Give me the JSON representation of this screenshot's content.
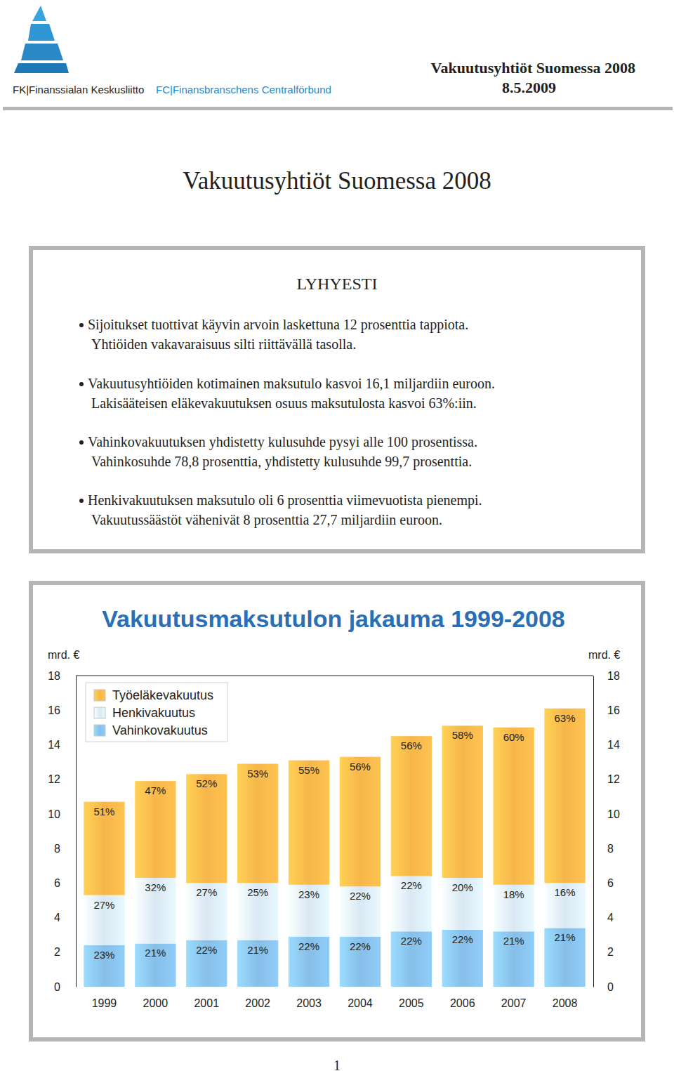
{
  "header": {
    "org": [
      "FK|Finanssialan Keskusliitto",
      "FC|Finansbranschens Centralförbund"
    ],
    "title": "Vakuutusyhtiöt Suomessa 2008",
    "date": "8.5.2009"
  },
  "title": "Vakuutusyhtiöt Suomessa 2008",
  "summary": {
    "heading": "LYHYESTI",
    "items": [
      [
        "Sijoitukset tuottivat käyvin arvoin laskettuna 12 prosenttia tappiota.",
        "Yhtiöiden vakavaraisuus silti riittävällä tasolla."
      ],
      [
        "Vakuutusyhtiöiden kotimainen maksutulo kasvoi 16,1 miljardiin euroon.",
        "Lakisääteisen eläkevakuutuksen osuus maksutulosta kasvoi 63%:iin."
      ],
      [
        "Vahinkovakuutuksen yhdistetty kulusuhde pysyi alle 100 prosentissa.",
        "Vahinkosuhde 78,8 prosenttia, yhdistetty kulusuhde 99,7 prosenttia."
      ],
      [
        "Henkivakuutuksen maksutulo oli 6 prosenttia viimevuotista pienempi.",
        "Vakuutussäästöt vähenivät 8 prosenttia 27,7 miljardiin euroon."
      ]
    ]
  },
  "chart_data": {
    "type": "bar",
    "stacked": true,
    "title": "Vakuutusmaksutulon jakauma 1999-2008",
    "ylabel": "mrd. €",
    "categories": [
      "1999",
      "2000",
      "2001",
      "2002",
      "2003",
      "2004",
      "2005",
      "2006",
      "2007",
      "2008"
    ],
    "series": [
      {
        "name": "Työeläkevakuutus",
        "color": "#f7b64a",
        "values": [
          5.4,
          5.6,
          6.3,
          6.9,
          7.2,
          7.5,
          8.1,
          8.8,
          9.1,
          10.1
        ],
        "shares": [
          "51%",
          "47%",
          "52%",
          "53%",
          "55%",
          "56%",
          "56%",
          "58%",
          "60%",
          "63%"
        ]
      },
      {
        "name": "Henkivakuutus",
        "color": "#d9e8f3",
        "values": [
          2.9,
          3.8,
          3.3,
          3.3,
          3.0,
          2.9,
          3.2,
          3.0,
          2.7,
          2.6
        ],
        "shares": [
          "27%",
          "32%",
          "27%",
          "25%",
          "23%",
          "22%",
          "22%",
          "20%",
          "18%",
          "16%"
        ]
      },
      {
        "name": "Vahinkovakuutus",
        "color": "#86bfe8",
        "values": [
          2.4,
          2.5,
          2.7,
          2.7,
          2.9,
          2.9,
          3.2,
          3.3,
          3.2,
          3.4
        ],
        "shares": [
          "23%",
          "21%",
          "22%",
          "21%",
          "22%",
          "22%",
          "22%",
          "22%",
          "21%",
          "21%"
        ]
      }
    ],
    "ylim": [
      0,
      18
    ],
    "yticks": [
      0,
      2,
      4,
      6,
      8,
      10,
      12,
      14,
      16,
      18
    ],
    "legend": "upper left",
    "grid": false
  },
  "page_number": 1
}
